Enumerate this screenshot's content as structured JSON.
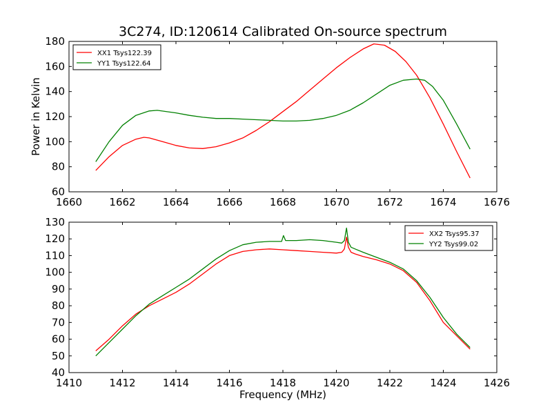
{
  "figure_title": "3C274, ID:120614 Calibrated On-source spectrum",
  "colors": {
    "xx": "#ff0000",
    "yy": "#008000"
  },
  "chart_data": [
    {
      "type": "line",
      "title": "3C274, ID:120614 Calibrated On-source spectrum",
      "xlabel": "",
      "ylabel": "Power in Kelvin",
      "xlim": [
        1660,
        1676
      ],
      "ylim": [
        60,
        180
      ],
      "xticks": [
        1660,
        1662,
        1664,
        1666,
        1668,
        1670,
        1672,
        1674,
        1676
      ],
      "yticks": [
        60,
        80,
        100,
        120,
        140,
        160,
        180
      ],
      "grid": false,
      "legend_position": "top-left",
      "series": [
        {
          "name": "XX1 Tsys122.39",
          "color": "#ff0000",
          "x": [
            1661.0,
            1661.5,
            1662.0,
            1662.5,
            1662.8,
            1663.0,
            1663.5,
            1664.0,
            1664.5,
            1665.0,
            1665.5,
            1666.0,
            1666.5,
            1667.0,
            1667.5,
            1668.0,
            1668.5,
            1669.0,
            1669.5,
            1670.0,
            1670.5,
            1671.0,
            1671.4,
            1671.8,
            1672.2,
            1672.6,
            1673.0,
            1673.5,
            1674.0,
            1674.5,
            1675.0
          ],
          "y": [
            77,
            88,
            97,
            102,
            103.5,
            103,
            100,
            97,
            95,
            94.5,
            96,
            99,
            103,
            109,
            116,
            124,
            132,
            141,
            150,
            159,
            167,
            174,
            178,
            177,
            172,
            164,
            153,
            135,
            114,
            92,
            71
          ]
        },
        {
          "name": "YY1 Tsys122.64",
          "color": "#008000",
          "x": [
            1661.0,
            1661.5,
            1662.0,
            1662.5,
            1663.0,
            1663.3,
            1664.0,
            1664.5,
            1665.0,
            1665.5,
            1666.0,
            1666.5,
            1667.0,
            1667.5,
            1668.0,
            1668.5,
            1669.0,
            1669.5,
            1670.0,
            1670.5,
            1671.0,
            1671.5,
            1672.0,
            1672.5,
            1673.0,
            1673.3,
            1673.6,
            1674.0,
            1674.5,
            1675.0
          ],
          "y": [
            84,
            100,
            113,
            121,
            124.5,
            125,
            123,
            121,
            119.5,
            118.5,
            118.5,
            118,
            117.5,
            117,
            116.5,
            116.5,
            117,
            118.5,
            121,
            125,
            131,
            138,
            145,
            149,
            150,
            149,
            144,
            133,
            114,
            94
          ]
        }
      ]
    },
    {
      "type": "line",
      "title": "",
      "xlabel": "Frequency (MHz)",
      "ylabel": "",
      "xlim": [
        1410,
        1426
      ],
      "ylim": [
        40,
        130
      ],
      "xticks": [
        1410,
        1412,
        1414,
        1416,
        1418,
        1420,
        1422,
        1424,
        1426
      ],
      "yticks": [
        40,
        50,
        60,
        70,
        80,
        90,
        100,
        110,
        120,
        130
      ],
      "grid": false,
      "legend_position": "top-right",
      "series": [
        {
          "name": "XX2 Tsys95.37",
          "color": "#ff0000",
          "x": [
            1411.0,
            1411.5,
            1412.0,
            1412.5,
            1413.0,
            1413.5,
            1414.0,
            1414.5,
            1415.0,
            1415.5,
            1416.0,
            1416.5,
            1417.0,
            1417.5,
            1418.0,
            1418.5,
            1419.0,
            1419.5,
            1420.0,
            1420.2,
            1420.3,
            1420.38,
            1420.45,
            1420.55,
            1420.7,
            1421.0,
            1421.5,
            1422.0,
            1422.5,
            1423.0,
            1423.5,
            1424.0,
            1424.5,
            1425.0
          ],
          "y": [
            53,
            60,
            68,
            75,
            80,
            84,
            88,
            93,
            99,
            105,
            110,
            112.5,
            113.5,
            114,
            113.5,
            113,
            112.5,
            112,
            111.5,
            112,
            114,
            121,
            115,
            112,
            111,
            109.5,
            107.5,
            105,
            101,
            94,
            83,
            70,
            62,
            54
          ]
        },
        {
          "name": "YY2 Tsys99.02",
          "color": "#008000",
          "x": [
            1411.0,
            1411.5,
            1412.0,
            1412.5,
            1413.0,
            1413.5,
            1414.0,
            1414.5,
            1415.0,
            1415.5,
            1416.0,
            1416.5,
            1417.0,
            1417.5,
            1417.95,
            1418.02,
            1418.1,
            1418.5,
            1419.0,
            1419.5,
            1420.0,
            1420.2,
            1420.3,
            1420.38,
            1420.45,
            1420.55,
            1420.7,
            1421.0,
            1421.5,
            1422.0,
            1422.5,
            1423.0,
            1423.5,
            1424.0,
            1424.5,
            1425.0
          ],
          "y": [
            50,
            58,
            66,
            74,
            81,
            86,
            91,
            96,
            102,
            108,
            113,
            116.5,
            118,
            118.5,
            118.5,
            122,
            119,
            119,
            119.5,
            119,
            118,
            117.5,
            119,
            126.5,
            118,
            115,
            114,
            112,
            109,
            106,
            102,
            95,
            85,
            73,
            63,
            55
          ]
        }
      ]
    }
  ]
}
